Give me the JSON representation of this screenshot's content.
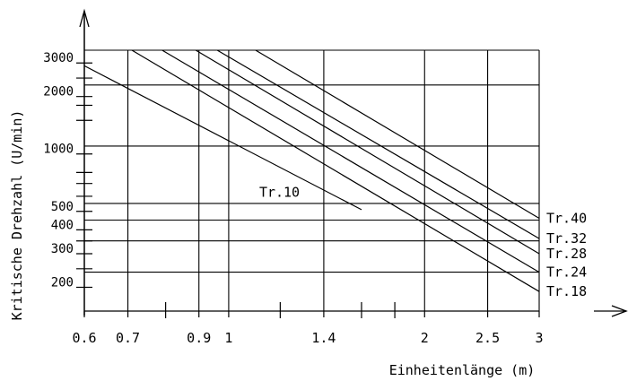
{
  "chart_data": {
    "type": "line",
    "x_scale": "log",
    "y_scale": "log",
    "xlabel": "Einheitenlänge (m)",
    "ylabel": "Kritische Drehzahl (U/min)",
    "xlim": [
      0.6,
      3
    ],
    "ylim": [
      150,
      3500
    ],
    "grid": true,
    "x_ticks_labeled": [
      "0.6",
      "0.7",
      "0.9",
      "1",
      "1.4",
      "2",
      "2.5",
      "3"
    ],
    "x_tick_values": [
      0.6,
      0.7,
      0.9,
      1,
      1.4,
      2,
      2.5,
      3
    ],
    "x_minor_ticks": [
      0.8,
      1.2,
      1.6,
      1.8
    ],
    "x_grid": [
      0.7,
      0.9,
      1,
      1.4,
      2,
      2.5,
      3
    ],
    "y_ticks_labeled": [
      "200",
      "300",
      "400",
      "500",
      "1000",
      "2000",
      "3000"
    ],
    "y_tick_values": [
      200,
      300,
      400,
      500,
      1000,
      2000,
      3000
    ],
    "y_minor_ticks": [
      250,
      350,
      600,
      700,
      800,
      1500,
      1800,
      2500
    ],
    "y_grid": [
      240,
      350,
      450,
      550,
      1100,
      2300,
      3500
    ],
    "series": [
      {
        "name": "Tr.10",
        "x": [
          0.6,
          1.6
        ],
        "y": [
          2900,
          510
        ]
      },
      {
        "name": "Tr.18",
        "x": [
          0.71,
          3
        ],
        "y": [
          3500,
          190
        ]
      },
      {
        "name": "Tr.24",
        "x": [
          0.79,
          3
        ],
        "y": [
          3500,
          240
        ]
      },
      {
        "name": "Tr.28",
        "x": [
          0.89,
          3
        ],
        "y": [
          3500,
          300
        ]
      },
      {
        "name": "Tr.32",
        "x": [
          0.96,
          3
        ],
        "y": [
          3500,
          360
        ]
      },
      {
        "name": "Tr.40",
        "x": [
          1.1,
          3
        ],
        "y": [
          3500,
          460
        ]
      }
    ]
  }
}
